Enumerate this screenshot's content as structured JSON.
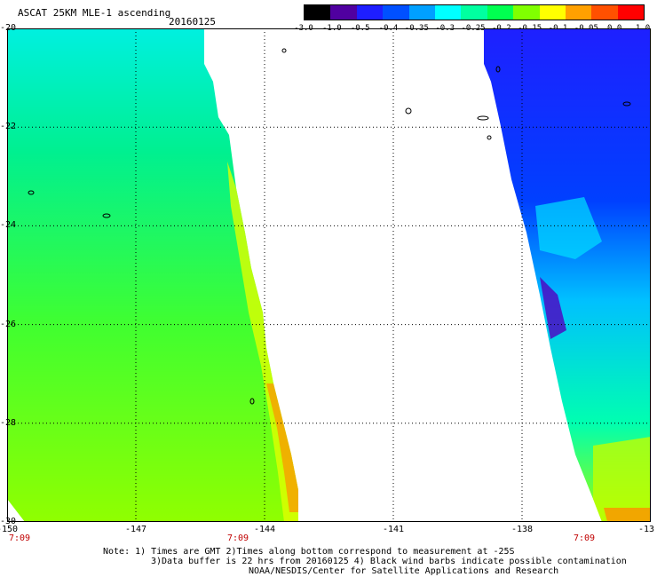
{
  "title": "ASCAT 25KM MLE-1 ascending",
  "date": "20160125",
  "latitudes": [
    "-20",
    "-22",
    "-24",
    "-26",
    "-28",
    "-30"
  ],
  "longitudes": [
    "-150",
    "-147",
    "-144",
    "-141",
    "-138",
    "-13"
  ],
  "time_labels": [
    "7:09",
    "7:09",
    "7:09"
  ],
  "colorbar": {
    "labels": [
      "-3.0",
      "-1.0",
      "-0.5",
      "-0.4",
      "-0.35",
      "-0.3",
      "-0.25",
      "-0.2",
      "-0.15",
      "-0.1",
      "-0.05",
      "0.0",
      "1.0"
    ],
    "colors": [
      "#000000",
      "#5000a0",
      "#1e1eff",
      "#0050ff",
      "#00a0ff",
      "#00ffff",
      "#00ffa0",
      "#00ff50",
      "#80ff00",
      "#ffff00",
      "#ffa000",
      "#ff5000",
      "#ff0000"
    ]
  },
  "notes": {
    "line1": "Note: 1) Times are GMT 2)Times along bottom correspond to measurement at -25S",
    "line2": "3)Data buffer is 22 hrs from 20160125 4) Black wind barbs indicate possible contamination",
    "line3": "NOAA/NESDIS/Center for Satellite Applications and Research"
  }
}
